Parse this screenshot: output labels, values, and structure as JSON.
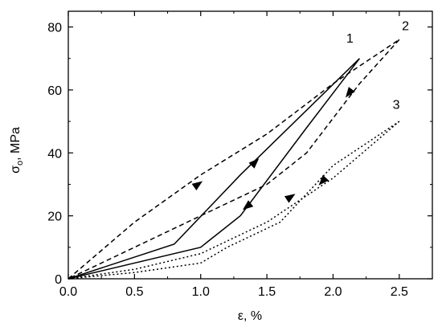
{
  "chart_data": {
    "type": "line",
    "xlabel": "ε, %",
    "ylabel": "σ",
    "ylabel_subscript": "o",
    "ylabel_unit": ", MPa",
    "xlim": [
      0.0,
      2.75
    ],
    "ylim": [
      0,
      85
    ],
    "x_ticks": [
      0.0,
      0.5,
      1.0,
      1.5,
      2.0,
      2.5
    ],
    "x_tick_labels": [
      "0.0",
      "0.5",
      "1.0",
      "1.5",
      "2.0",
      "2.5"
    ],
    "y_ticks": [
      0,
      20,
      40,
      60,
      80
    ],
    "y_tick_labels": [
      "0",
      "20",
      "40",
      "60",
      "80"
    ],
    "grid": false,
    "series": [
      {
        "label": "1",
        "style": "solid",
        "color": "#000000",
        "loading": [
          [
            0.0,
            0
          ],
          [
            0.8,
            11
          ],
          [
            1.3,
            33
          ],
          [
            2.2,
            70
          ]
        ],
        "unloading": [
          [
            2.2,
            70
          ],
          [
            1.8,
            48
          ],
          [
            1.3,
            20
          ],
          [
            1.0,
            10
          ],
          [
            0.0,
            0
          ]
        ],
        "arrows": [
          {
            "x": 1.41,
            "y": 37,
            "direction": "up"
          },
          {
            "x": 1.35,
            "y": 23,
            "direction": "down"
          }
        ]
      },
      {
        "label": "2",
        "style": "dashed",
        "color": "#000000",
        "loading": [
          [
            0.0,
            0
          ],
          [
            0.5,
            18
          ],
          [
            1.0,
            33
          ],
          [
            1.5,
            46
          ],
          [
            2.0,
            62
          ],
          [
            2.5,
            76
          ]
        ],
        "unloading": [
          [
            2.5,
            76
          ],
          [
            2.2,
            62
          ],
          [
            1.8,
            40
          ],
          [
            1.5,
            30
          ],
          [
            1.0,
            20
          ],
          [
            0.5,
            10
          ],
          [
            0.0,
            0
          ]
        ],
        "arrows": [
          {
            "x": 0.98,
            "y": 30,
            "direction": "up"
          },
          {
            "x": 2.12,
            "y": 59,
            "direction": "down"
          }
        ]
      },
      {
        "label": "3",
        "style": "dotted",
        "color": "#000000",
        "loading": [
          [
            0.0,
            0
          ],
          [
            0.5,
            3
          ],
          [
            1.0,
            8
          ],
          [
            1.5,
            18
          ],
          [
            2.0,
            32
          ],
          [
            2.5,
            50
          ]
        ],
        "unloading": [
          [
            2.5,
            50
          ],
          [
            2.0,
            36
          ],
          [
            1.6,
            18
          ],
          [
            1.2,
            10
          ],
          [
            1.0,
            5
          ],
          [
            0.5,
            2
          ],
          [
            0.0,
            0
          ]
        ],
        "arrows": [
          {
            "x": 1.68,
            "y": 26,
            "direction": "up"
          },
          {
            "x": 1.92,
            "y": 31,
            "direction": "down"
          }
        ]
      }
    ],
    "annotations": [
      {
        "text": "1",
        "x": 2.1,
        "y": 75
      },
      {
        "text": "2",
        "x": 2.52,
        "y": 79
      },
      {
        "text": "3",
        "x": 2.45,
        "y": 54
      }
    ]
  }
}
